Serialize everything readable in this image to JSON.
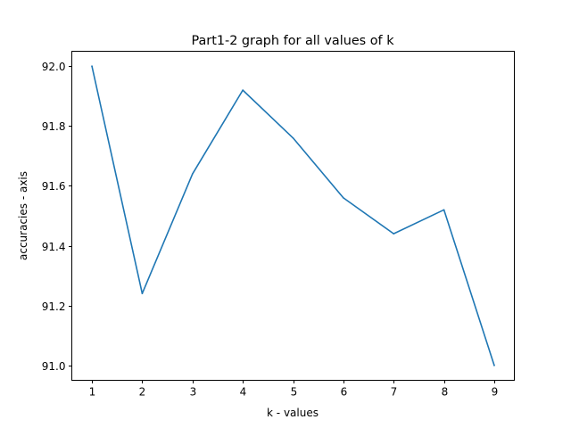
{
  "chart_data": {
    "type": "line",
    "title": "Part1-2 graph for all values of k",
    "xlabel": "k - values",
    "ylabel": "accuracies - axis",
    "x": [
      1,
      2,
      3,
      4,
      5,
      6,
      7,
      8,
      9
    ],
    "series": [
      {
        "values": [
          92.0,
          91.24,
          91.64,
          91.92,
          91.76,
          91.56,
          91.44,
          91.52,
          91.0
        ],
        "color": "#1f77b4"
      }
    ],
    "xticks": [
      1,
      2,
      3,
      4,
      5,
      6,
      7,
      8,
      9
    ],
    "xtick_labels": [
      "1",
      "2",
      "3",
      "4",
      "5",
      "6",
      "7",
      "8",
      "9"
    ],
    "yticks": [
      91.0,
      91.2,
      91.4,
      91.6,
      91.8,
      92.0
    ],
    "ytick_labels": [
      "91.0",
      "91.2",
      "91.4",
      "91.6",
      "91.8",
      "92.0"
    ],
    "xlim": [
      0.6,
      9.4
    ],
    "ylim": [
      90.95,
      92.05
    ],
    "grid": false,
    "legend": "none"
  }
}
